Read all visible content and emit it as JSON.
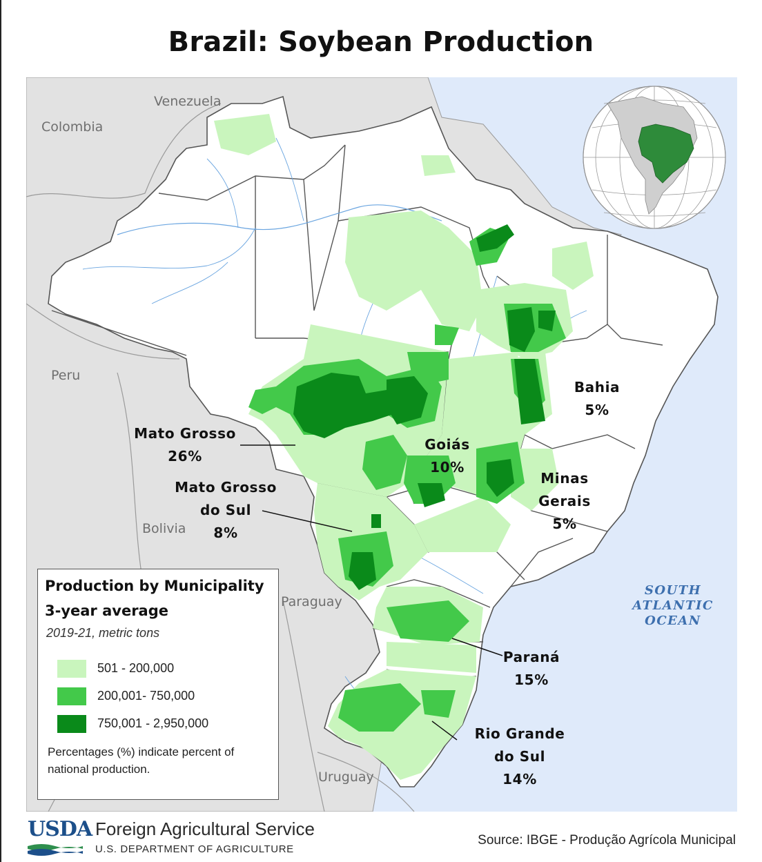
{
  "title": "Brazil: Soybean Production",
  "countries": {
    "colombia": "Colombia",
    "venezuela": "Venezuela",
    "peru": "Peru",
    "bolivia": "Bolivia",
    "paraguay": "Paraguay",
    "uruguay": "Uruguay"
  },
  "ocean_lines": [
    "SOUTH",
    "ATLANTIC",
    "OCEAN"
  ],
  "states": [
    {
      "id": "mato-grosso",
      "lines": [
        "Mato Grosso",
        "26%"
      ],
      "share_pct": 26
    },
    {
      "id": "mato-grosso-do-sul",
      "lines": [
        "Mato Grosso",
        "do Sul",
        "8%"
      ],
      "share_pct": 8
    },
    {
      "id": "goias",
      "lines": [
        "Goiás",
        "10%"
      ],
      "share_pct": 10
    },
    {
      "id": "bahia",
      "lines": [
        "Bahia",
        "5%"
      ],
      "share_pct": 5
    },
    {
      "id": "minas-gerais",
      "lines": [
        "Minas",
        "Gerais",
        "5%"
      ],
      "share_pct": 5
    },
    {
      "id": "parana",
      "lines": [
        "Paraná",
        "15%"
      ],
      "share_pct": 15
    },
    {
      "id": "rio-grande-do-sul",
      "lines": [
        "Rio Grande",
        "do Sul",
        "14%"
      ],
      "share_pct": 14
    }
  ],
  "legend": {
    "title_line1": "Production by Municipality",
    "title_line2": "3-year average",
    "subtitle": "2019-21, metric tons",
    "items": [
      {
        "label": "501 - 200,000",
        "color": "#c9f5bd"
      },
      {
        "label": "200,001- 750,000",
        "color": "#43c94a"
      },
      {
        "label": "750,001 - 2,950,000",
        "color": "#0a8a1a"
      }
    ],
    "note": "Percentages (%) indicate percent of national production."
  },
  "colors": {
    "ocean": "#dfeafa",
    "neighbor_land": "#e2e2e2",
    "brazil_land": "#ffffff",
    "low": "#c9f5bd",
    "mid": "#43c94a",
    "high": "#0a8a1a",
    "river": "#6aa5e0"
  },
  "footer": {
    "logo": "USDA",
    "agency": "Foreign Agricultural Service",
    "department": "U.S. DEPARTMENT OF AGRICULTURE",
    "source": "Source: IBGE - Produção Agrícola Municipal"
  }
}
